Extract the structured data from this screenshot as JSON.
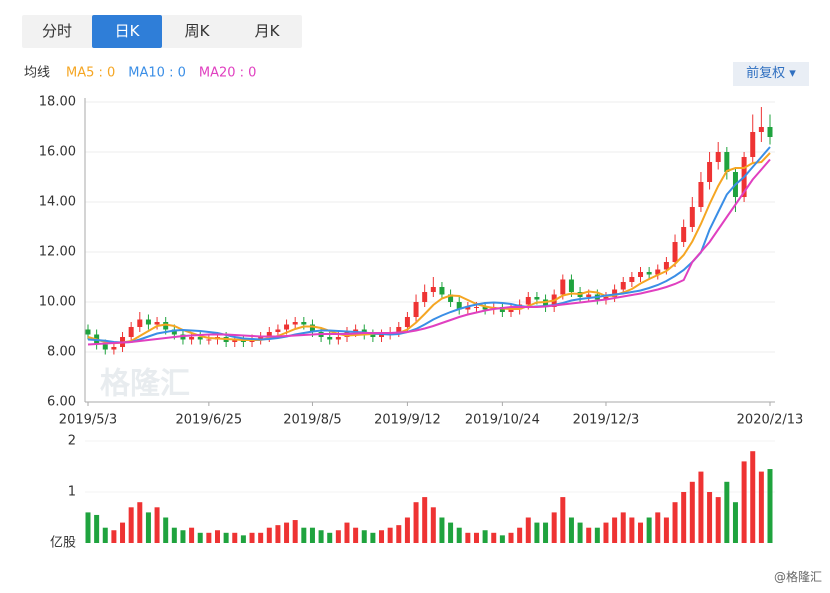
{
  "tabs": [
    "分时",
    "日K",
    "周K",
    "月K"
  ],
  "active_tab": 1,
  "legend_title": "均线",
  "adjust_button": "前复权",
  "watermark": "格隆汇",
  "credit": "@格隆汇",
  "chart_data": {
    "type": "candlestick",
    "categories": [
      "2019/5/3",
      null,
      null,
      null,
      null,
      null,
      null,
      null,
      null,
      null,
      null,
      null,
      null,
      null,
      "2019/6/25",
      null,
      null,
      null,
      null,
      null,
      null,
      null,
      null,
      null,
      null,
      null,
      "2019/8/5",
      null,
      null,
      null,
      null,
      null,
      null,
      null,
      null,
      null,
      null,
      "2019/9/12",
      null,
      null,
      null,
      null,
      null,
      null,
      null,
      null,
      null,
      null,
      "2019/10/24",
      null,
      null,
      null,
      null,
      null,
      null,
      null,
      null,
      null,
      null,
      null,
      "2019/12/3",
      null,
      null,
      null,
      null,
      null,
      null,
      null,
      null,
      null,
      null,
      null,
      null,
      null,
      null,
      null,
      null,
      null,
      null,
      "2020/2/13"
    ],
    "open": [
      8.9,
      8.7,
      8.3,
      8.1,
      8.2,
      8.6,
      9.0,
      9.3,
      9.1,
      9.2,
      8.9,
      8.7,
      8.5,
      8.6,
      8.5,
      8.5,
      8.6,
      8.4,
      8.5,
      8.4,
      8.5,
      8.6,
      8.8,
      8.9,
      9.1,
      9.2,
      9.1,
      8.8,
      8.6,
      8.5,
      8.6,
      8.8,
      8.9,
      8.7,
      8.6,
      8.7,
      8.8,
      9.0,
      9.4,
      10.0,
      10.4,
      10.6,
      10.3,
      10.0,
      9.7,
      9.8,
      9.8,
      9.7,
      9.8,
      9.6,
      9.7,
      9.9,
      10.2,
      10.1,
      9.8,
      10.3,
      10.9,
      10.4,
      10.2,
      10.3,
      10.1,
      10.2,
      10.5,
      10.8,
      11.0,
      11.2,
      11.1,
      11.3,
      11.6,
      12.4,
      13.0,
      13.8,
      14.8,
      15.6,
      16.0,
      15.2,
      14.2,
      15.8,
      16.8,
      17.0
    ],
    "close": [
      8.7,
      8.3,
      8.1,
      8.2,
      8.6,
      9.0,
      9.3,
      9.1,
      9.2,
      8.9,
      8.7,
      8.5,
      8.6,
      8.5,
      8.5,
      8.6,
      8.4,
      8.5,
      8.4,
      8.5,
      8.6,
      8.8,
      8.9,
      9.1,
      9.2,
      9.1,
      8.8,
      8.6,
      8.5,
      8.6,
      8.8,
      8.9,
      8.7,
      8.6,
      8.7,
      8.8,
      9.0,
      9.4,
      10.0,
      10.4,
      10.6,
      10.3,
      10.0,
      9.7,
      9.8,
      9.8,
      9.7,
      9.8,
      9.6,
      9.7,
      9.9,
      10.2,
      10.1,
      9.8,
      10.3,
      10.9,
      10.4,
      10.2,
      10.3,
      10.1,
      10.2,
      10.5,
      10.8,
      11.0,
      11.2,
      11.1,
      11.3,
      11.6,
      12.4,
      13.0,
      13.8,
      14.8,
      15.6,
      16.0,
      15.2,
      14.2,
      15.8,
      16.8,
      17.0,
      16.6
    ],
    "high": [
      9.1,
      8.9,
      8.5,
      8.4,
      8.8,
      9.2,
      9.6,
      9.5,
      9.4,
      9.4,
      9.1,
      8.9,
      8.8,
      8.8,
      8.7,
      8.8,
      8.8,
      8.7,
      8.7,
      8.7,
      8.8,
      9.0,
      9.1,
      9.3,
      9.4,
      9.4,
      9.3,
      9.0,
      8.8,
      8.8,
      9.0,
      9.1,
      9.1,
      8.9,
      8.9,
      9.0,
      9.2,
      9.6,
      10.3,
      10.7,
      11.0,
      10.8,
      10.5,
      10.2,
      10.0,
      10.0,
      10.0,
      10.0,
      10.0,
      9.9,
      10.1,
      10.4,
      10.4,
      10.3,
      10.5,
      11.1,
      11.1,
      10.6,
      10.5,
      10.5,
      10.4,
      10.7,
      11.0,
      11.2,
      11.4,
      11.4,
      11.5,
      11.8,
      12.7,
      13.3,
      14.2,
      15.2,
      16.0,
      16.4,
      16.2,
      15.4,
      16.0,
      17.5,
      17.8,
      17.5
    ],
    "low": [
      8.5,
      8.1,
      7.9,
      7.9,
      8.0,
      8.4,
      8.8,
      8.9,
      8.9,
      8.7,
      8.5,
      8.3,
      8.3,
      8.3,
      8.3,
      8.3,
      8.2,
      8.2,
      8.2,
      8.2,
      8.3,
      8.4,
      8.6,
      8.7,
      8.9,
      8.9,
      8.6,
      8.4,
      8.3,
      8.3,
      8.4,
      8.6,
      8.5,
      8.4,
      8.4,
      8.5,
      8.6,
      8.8,
      9.2,
      9.8,
      10.2,
      10.1,
      9.8,
      9.5,
      9.5,
      9.6,
      9.5,
      9.5,
      9.4,
      9.4,
      9.5,
      9.7,
      9.9,
      9.6,
      9.6,
      10.1,
      10.2,
      10.0,
      10.0,
      9.9,
      9.9,
      10.0,
      10.3,
      10.6,
      10.8,
      10.9,
      10.9,
      11.1,
      11.4,
      12.2,
      12.8,
      13.6,
      14.5,
      15.3,
      14.9,
      13.6,
      14.0,
      15.6,
      16.4,
      16.3
    ],
    "up_color": "#ee3333",
    "down_color": "#1fa33e",
    "series": [
      {
        "name": "MA5 : 0",
        "color": "#f5a623",
        "values": [
          8.6,
          8.5,
          8.4,
          8.35,
          8.38,
          8.44,
          8.64,
          8.84,
          9.04,
          9.1,
          9.04,
          8.88,
          8.76,
          8.64,
          8.56,
          8.54,
          8.52,
          8.5,
          8.48,
          8.48,
          8.48,
          8.56,
          8.64,
          8.78,
          8.92,
          9.02,
          9.02,
          8.96,
          8.84,
          8.72,
          8.66,
          8.68,
          8.7,
          8.72,
          8.74,
          8.74,
          8.76,
          8.9,
          9.18,
          9.52,
          9.88,
          10.14,
          10.26,
          10.24,
          10.08,
          9.92,
          9.82,
          9.76,
          9.74,
          9.72,
          9.72,
          9.84,
          9.98,
          10.0,
          10.06,
          10.26,
          10.34,
          10.32,
          10.42,
          10.38,
          10.24,
          10.26,
          10.38,
          10.52,
          10.74,
          10.92,
          11.08,
          11.24,
          11.52,
          11.88,
          12.42,
          13.12,
          13.92,
          14.64,
          15.24,
          15.36,
          15.36,
          15.56,
          15.6,
          15.96
        ]
      },
      {
        "name": "MA10 : 0",
        "color": "#3a8ee6",
        "values": [
          8.5,
          8.48,
          8.45,
          8.4,
          8.38,
          8.4,
          8.5,
          8.62,
          8.74,
          8.8,
          8.86,
          8.88,
          8.86,
          8.84,
          8.8,
          8.76,
          8.68,
          8.6,
          8.54,
          8.52,
          8.5,
          8.52,
          8.56,
          8.62,
          8.7,
          8.76,
          8.82,
          8.86,
          8.86,
          8.84,
          8.82,
          8.8,
          8.78,
          8.74,
          8.72,
          8.7,
          8.72,
          8.8,
          8.92,
          9.1,
          9.3,
          9.46,
          9.6,
          9.72,
          9.82,
          9.9,
          9.96,
          9.98,
          9.96,
          9.92,
          9.84,
          9.8,
          9.82,
          9.84,
          9.88,
          9.96,
          10.06,
          10.12,
          10.16,
          10.2,
          10.26,
          10.3,
          10.34,
          10.4,
          10.46,
          10.56,
          10.68,
          10.84,
          11.04,
          11.28,
          11.6,
          11.98,
          12.9,
          13.6,
          14.3,
          14.7,
          15.0,
          15.4,
          15.8,
          16.2
        ]
      },
      {
        "name": "MA20 : 0",
        "color": "#e040c0",
        "values": [
          8.3,
          8.32,
          8.34,
          8.36,
          8.38,
          8.4,
          8.44,
          8.48,
          8.52,
          8.56,
          8.6,
          8.64,
          8.66,
          8.68,
          8.7,
          8.7,
          8.7,
          8.68,
          8.66,
          8.64,
          8.62,
          8.62,
          8.62,
          8.64,
          8.66,
          8.68,
          8.7,
          8.72,
          8.72,
          8.72,
          8.72,
          8.74,
          8.76,
          8.76,
          8.76,
          8.76,
          8.78,
          8.8,
          8.86,
          8.94,
          9.04,
          9.16,
          9.28,
          9.4,
          9.5,
          9.58,
          9.66,
          9.72,
          9.76,
          9.8,
          9.8,
          9.8,
          9.8,
          9.82,
          9.86,
          9.9,
          9.94,
          9.98,
          10.02,
          10.06,
          10.1,
          10.16,
          10.22,
          10.28,
          10.34,
          10.42,
          10.5,
          10.6,
          10.72,
          10.88,
          11.6,
          12.0,
          12.4,
          12.9,
          13.4,
          13.9,
          14.4,
          14.9,
          15.3,
          15.7
        ]
      }
    ],
    "ylim": [
      6,
      18
    ],
    "yticks": [
      {
        "value": 6,
        "label": "6.00"
      },
      {
        "value": 8,
        "label": "8.00"
      },
      {
        "value": 10,
        "label": "10.00"
      },
      {
        "value": 12,
        "label": "12.00"
      },
      {
        "value": 14,
        "label": "14.00"
      },
      {
        "value": 16,
        "label": "16.00"
      },
      {
        "value": 18,
        "label": "18.00"
      }
    ],
    "grid": true,
    "volume": {
      "unit": "亿股",
      "ylim": [
        0,
        2
      ],
      "yticks": [
        1,
        2
      ],
      "values": [
        0.6,
        0.55,
        0.3,
        0.25,
        0.4,
        0.7,
        0.8,
        0.6,
        0.7,
        0.5,
        0.3,
        0.25,
        0.3,
        0.2,
        0.2,
        0.25,
        0.2,
        0.2,
        0.15,
        0.2,
        0.2,
        0.3,
        0.35,
        0.4,
        0.45,
        0.3,
        0.3,
        0.25,
        0.2,
        0.25,
        0.4,
        0.3,
        0.25,
        0.2,
        0.25,
        0.3,
        0.35,
        0.5,
        0.8,
        0.9,
        0.7,
        0.5,
        0.4,
        0.3,
        0.2,
        0.2,
        0.25,
        0.2,
        0.15,
        0.2,
        0.3,
        0.5,
        0.4,
        0.4,
        0.6,
        0.9,
        0.5,
        0.4,
        0.3,
        0.3,
        0.4,
        0.5,
        0.6,
        0.5,
        0.4,
        0.5,
        0.6,
        0.5,
        0.8,
        1.0,
        1.2,
        1.4,
        1.0,
        0.9,
        1.2,
        0.8,
        1.6,
        1.8,
        1.4,
        1.45
      ]
    }
  }
}
